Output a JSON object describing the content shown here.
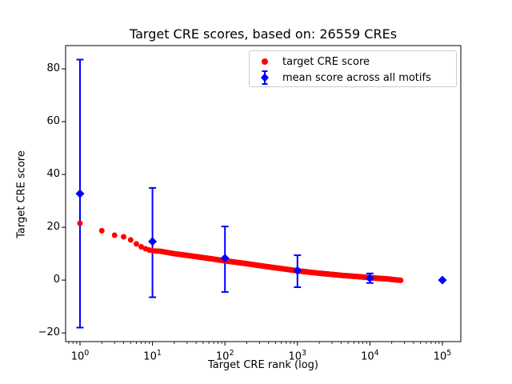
{
  "chart_data": {
    "type": "scatter",
    "title": "Target CRE scores, based on: 26559 CREs",
    "xlabel": "Target CRE rank (log)",
    "ylabel": "Target CRE score",
    "x_scale": "log",
    "xlim": [
      0.633,
      179400
    ],
    "ylim": [
      -23.3,
      88.8
    ],
    "x_tick_exponents": [
      0,
      1,
      2,
      3,
      4,
      5
    ],
    "y_ticks": [
      -20,
      0,
      20,
      40,
      60,
      80
    ],
    "grid": false,
    "colors": {
      "red": "#ff0000",
      "blue": "#0000ff",
      "frame": "#000000"
    },
    "series": [
      {
        "name": "target CRE score",
        "kind": "scatter",
        "color_key": "red",
        "marker": "circle",
        "n_total_points": 26559,
        "anchors": [
          [
            1,
            21.5
          ],
          [
            2,
            18.7
          ],
          [
            3,
            17.0
          ],
          [
            4,
            16.4
          ],
          [
            5,
            15.2
          ],
          [
            6,
            13.7
          ],
          [
            7,
            12.6
          ],
          [
            8,
            11.9
          ],
          [
            9,
            11.4
          ],
          [
            10,
            11.1
          ],
          [
            13,
            10.9
          ],
          [
            20,
            10.0
          ],
          [
            35,
            9.1
          ],
          [
            60,
            8.2
          ],
          [
            100,
            7.3
          ],
          [
            200,
            6.2
          ],
          [
            400,
            5.0
          ],
          [
            700,
            4.1
          ],
          [
            1000,
            3.5
          ],
          [
            2000,
            2.6
          ],
          [
            4000,
            1.8
          ],
          [
            7000,
            1.3
          ],
          [
            10000,
            0.9
          ],
          [
            18000,
            0.4
          ],
          [
            26559,
            -0.1
          ]
        ]
      },
      {
        "name": "mean score across all motifs",
        "kind": "errorbar",
        "color_key": "blue",
        "marker": "diamond",
        "points": [
          {
            "x": 1,
            "mean": 32.7,
            "lo": -18.0,
            "hi": 83.5
          },
          {
            "x": 10,
            "mean": 14.6,
            "lo": -6.5,
            "hi": 34.9
          },
          {
            "x": 100,
            "mean": 8.3,
            "lo": -4.5,
            "hi": 20.3
          },
          {
            "x": 1000,
            "mean": 3.6,
            "lo": -2.7,
            "hi": 9.4
          },
          {
            "x": 10000,
            "mean": 0.7,
            "lo": -1.1,
            "hi": 2.5
          },
          {
            "x": 100000,
            "mean": 0.0,
            "lo": 0.0,
            "hi": 0.0
          }
        ]
      }
    ],
    "legend": {
      "position": "upper right",
      "entries": [
        {
          "label": "target CRE score"
        },
        {
          "label": "mean score across all motifs"
        }
      ]
    }
  }
}
